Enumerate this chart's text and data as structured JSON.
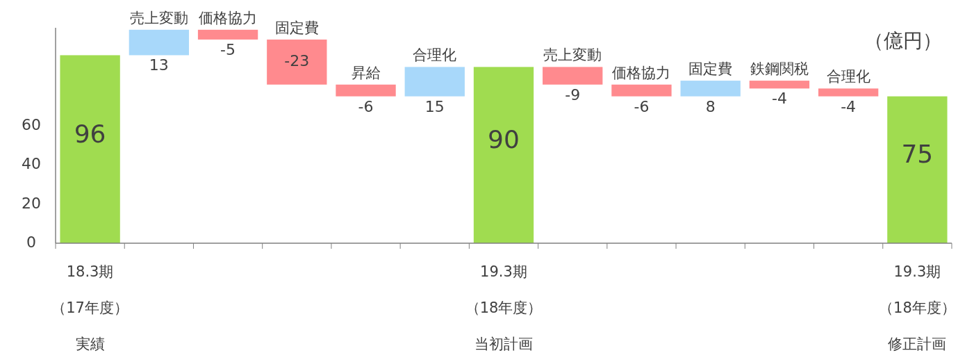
{
  "chart_data": {
    "type": "bar",
    "ylabel": "（億円）",
    "categories": [
      "18.3期（17年度）実績",
      "売上変動",
      "価格協力",
      "固定費",
      "昇給",
      "合理化",
      "19.3期（18年度）当初計画",
      "売上変動",
      "価格協力",
      "固定費",
      "鉄鋼関税",
      "合理化",
      "19.3期（18年度）修正計画"
    ],
    "values": [
      96,
      13,
      -5,
      -23,
      -6,
      15,
      90,
      -9,
      -6,
      8,
      -4,
      -4,
      75
    ],
    "base": [
      null,
      96,
      109,
      104,
      81,
      75,
      null,
      90,
      81,
      75,
      83,
      79,
      null
    ],
    "colors": [
      "#a0dc50",
      "#a8d8fa",
      "#ff8a8e",
      "#ff8a8e",
      "#ff8a8e",
      "#a8d8fa",
      "#a0dc50",
      "#ff8a8e",
      "#ff8a8e",
      "#a8d8fa",
      "#ff8a8e",
      "#ff8a8e",
      "#a0dc50"
    ],
    "data_labels": true,
    "ylim": [
      0,
      110
    ],
    "yticks": [
      0,
      20,
      40,
      60
    ],
    "grid": false
  }
}
